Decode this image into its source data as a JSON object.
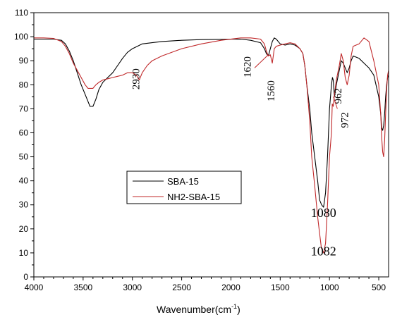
{
  "chart_data": {
    "type": "line",
    "title": "",
    "xlabel": "Wavenumber(cm",
    "xlabel_sup": "-1",
    "xlabel_close": ")",
    "ylabel": "",
    "xlim": [
      4000,
      400
    ],
    "ylim": [
      0,
      110
    ],
    "x_reversed": true,
    "x_ticks": [
      4000,
      3500,
      3000,
      2500,
      2000,
      1500,
      1000,
      500
    ],
    "y_ticks": [
      0,
      10,
      20,
      30,
      40,
      50,
      60,
      70,
      80,
      90,
      100,
      110
    ],
    "legend_position": "center-left",
    "series": [
      {
        "name": "SBA-15",
        "color": "#000000",
        "x": [
          4000,
          3900,
          3800,
          3720,
          3680,
          3640,
          3600,
          3560,
          3520,
          3480,
          3450,
          3430,
          3400,
          3370,
          3340,
          3300,
          3250,
          3200,
          3150,
          3100,
          3050,
          3000,
          2950,
          2900,
          2800,
          2700,
          2500,
          2300,
          2100,
          1900,
          1800,
          1700,
          1660,
          1640,
          1620,
          1600,
          1580,
          1560,
          1540,
          1500,
          1450,
          1400,
          1350,
          1300,
          1270,
          1250,
          1230,
          1200,
          1180,
          1150,
          1120,
          1100,
          1080,
          1060,
          1040,
          1020,
          1000,
          980,
          970,
          962,
          950,
          930,
          900,
          880,
          860,
          840,
          820,
          800,
          780,
          760,
          700,
          650,
          600,
          550,
          500,
          480,
          470,
          460,
          450,
          440,
          430,
          420,
          410,
          400
        ],
        "y": [
          99,
          99,
          99,
          98.5,
          97,
          94,
          90,
          85,
          80,
          76,
          73,
          71,
          71,
          74,
          78,
          81,
          83,
          85,
          88,
          91,
          93.5,
          95,
          96,
          97,
          97.5,
          98,
          98.5,
          98.8,
          98.9,
          99,
          98.5,
          97.5,
          95,
          93,
          92,
          95,
          98,
          99.5,
          99,
          97,
          96.5,
          97,
          96.5,
          95,
          93,
          88,
          80,
          70,
          60,
          50,
          40,
          32,
          30,
          29,
          35,
          50,
          70,
          80,
          83,
          82,
          75,
          80,
          86,
          90,
          89,
          87,
          85,
          87,
          90,
          92,
          91,
          89,
          87,
          84,
          75,
          68,
          62,
          61,
          63,
          68,
          75,
          80,
          83,
          84
        ]
      },
      {
        "name": "NH2-SBA-15",
        "color": "#c0282a",
        "x": [
          4000,
          3900,
          3800,
          3720,
          3680,
          3640,
          3600,
          3560,
          3520,
          3480,
          3450,
          3430,
          3400,
          3370,
          3340,
          3300,
          3250,
          3200,
          3150,
          3100,
          3050,
          3000,
          2960,
          2930,
          2900,
          2850,
          2800,
          2700,
          2500,
          2300,
          2100,
          1900,
          1800,
          1700,
          1660,
          1640,
          1620,
          1600,
          1580,
          1560,
          1540,
          1500,
          1450,
          1400,
          1350,
          1300,
          1270,
          1250,
          1230,
          1200,
          1180,
          1150,
          1120,
          1100,
          1082,
          1060,
          1040,
          1020,
          1000,
          980,
          972,
          962,
          950,
          930,
          900,
          880,
          860,
          840,
          820,
          800,
          780,
          760,
          700,
          650,
          600,
          550,
          500,
          480,
          470,
          460,
          450,
          440,
          430,
          420,
          410,
          400
        ],
        "y": [
          99.5,
          99.5,
          99.3,
          98,
          96,
          93,
          89,
          86,
          83,
          80,
          78.5,
          78.5,
          78.5,
          80,
          81,
          82,
          82.5,
          83,
          83.5,
          84,
          85,
          85,
          84,
          82,
          85,
          88,
          90,
          92,
          95,
          97,
          98.5,
          99.5,
          99.5,
          99,
          97,
          94,
          92,
          92.5,
          89,
          95,
          96,
          96.5,
          97,
          97.5,
          97,
          95,
          93,
          88,
          80,
          65,
          50,
          38,
          25,
          18,
          12,
          10,
          14,
          30,
          50,
          60,
          72,
          71,
          76,
          82,
          88,
          93,
          90,
          83,
          80,
          84,
          92,
          96,
          97,
          99.5,
          98,
          90,
          80,
          68,
          58,
          52,
          50,
          57,
          68,
          78,
          84,
          86
        ]
      }
    ],
    "annotations": [
      {
        "text": "2930",
        "x": 2930,
        "y": 78,
        "rotate": true
      },
      {
        "text": "1620",
        "x": 1800,
        "y": 83,
        "rotate": true
      },
      {
        "text": "1560",
        "x": 1560,
        "y": 73,
        "rotate": true
      },
      {
        "text": "962",
        "x": 880,
        "y": 72,
        "rotate": true
      },
      {
        "text": "972",
        "x": 810,
        "y": 62,
        "rotate": true
      },
      {
        "text": "1080",
        "x": 1060,
        "y": 25,
        "rotate": false
      },
      {
        "text": "1082",
        "x": 1060,
        "y": 9,
        "rotate": false
      }
    ]
  }
}
